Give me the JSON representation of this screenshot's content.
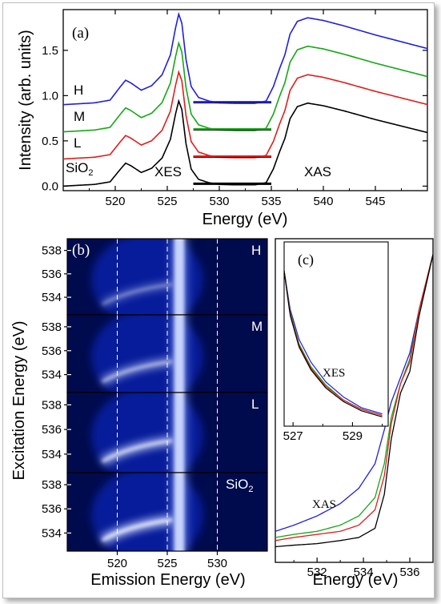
{
  "chart_data": [
    {
      "panel": "(a)",
      "type": "line",
      "xlabel": "Energy (eV)",
      "ylabel": "Intensity (arb. units)",
      "xlim": [
        515,
        550
      ],
      "ylim": [
        -0.05,
        1.95
      ],
      "xticks": [
        "520",
        "525",
        "530",
        "535",
        "540",
        "545"
      ],
      "yticks": [
        "0.0",
        "0.5",
        "1.0",
        "1.5"
      ],
      "annotations": {
        "xes": "XES",
        "xas": "XAS"
      },
      "series": [
        {
          "label": "H",
          "color": "#1f1fdd",
          "offset": 0.9,
          "baseline_marker": [
            527.5,
            535
          ]
        },
        {
          "label": "M",
          "color": "#14a814",
          "offset": 0.6,
          "baseline_marker": [
            527.5,
            535
          ]
        },
        {
          "label": "L",
          "color": "#e21c1c",
          "offset": 0.3,
          "baseline_marker": [
            527.5,
            535
          ]
        },
        {
          "label": "SiO",
          "label_sub": "2",
          "color": "#000000",
          "offset": 0.0,
          "baseline_marker": [
            527.5,
            535
          ]
        }
      ],
      "xes_shape": [
        [
          515,
          0.0
        ],
        [
          518,
          0.02
        ],
        [
          519.5,
          0.05
        ],
        [
          520.5,
          0.2
        ],
        [
          521,
          0.27
        ],
        [
          521.5,
          0.24
        ],
        [
          522.5,
          0.16
        ],
        [
          523.5,
          0.21
        ],
        [
          524.5,
          0.33
        ],
        [
          525.3,
          0.55
        ],
        [
          525.8,
          0.85
        ],
        [
          526.1,
          1.0
        ],
        [
          526.4,
          0.9
        ],
        [
          526.8,
          0.5
        ],
        [
          527.3,
          0.2
        ],
        [
          528,
          0.08
        ],
        [
          529,
          0.04
        ],
        [
          530,
          0.02
        ],
        [
          531.5,
          0.015
        ],
        [
          533,
          0.015
        ]
      ],
      "xas_shape": [
        [
          527,
          0.0
        ],
        [
          533,
          0.005
        ],
        [
          534.5,
          0.04
        ],
        [
          535.2,
          0.2
        ],
        [
          535.8,
          0.4
        ],
        [
          536.3,
          0.55
        ],
        [
          536.8,
          0.78
        ],
        [
          537.5,
          0.92
        ],
        [
          538.5,
          0.96
        ],
        [
          540,
          0.93
        ],
        [
          542,
          0.87
        ],
        [
          545,
          0.77
        ],
        [
          548,
          0.68
        ],
        [
          550,
          0.62
        ]
      ]
    },
    {
      "panel": "(b)",
      "type": "heatmap",
      "xlabel": "Emission Energy (eV)",
      "ylabel": "Excitation Energy (eV)",
      "xlim": [
        515,
        535
      ],
      "ylim": [
        532.5,
        539
      ],
      "xticks": [
        "520",
        "525",
        "530"
      ],
      "yticks": [
        "534",
        "536",
        "538"
      ],
      "dashed_lines_x": [
        520,
        525,
        530
      ],
      "maps": [
        {
          "label": "H",
          "strength": 0.35
        },
        {
          "label": "M",
          "strength": 0.65
        },
        {
          "label": "L",
          "strength": 0.85
        },
        {
          "label": "SiO",
          "label_sub": "2",
          "strength": 1.0
        }
      ]
    },
    {
      "panel": "(c)",
      "type": "line",
      "xlabel": "Energy (eV)",
      "xlim": [
        530.2,
        537
      ],
      "xticks": [
        "532",
        "534",
        "536"
      ],
      "annotations": {
        "xas": "XAS"
      },
      "xas_series": [
        {
          "color": "#1f1fdd",
          "points": [
            [
              530.2,
              0.08
            ],
            [
              531,
              0.1
            ],
            [
              532,
              0.13
            ],
            [
              533,
              0.17
            ],
            [
              533.8,
              0.22
            ],
            [
              534.5,
              0.3
            ],
            [
              534.9,
              0.41
            ],
            [
              535.2,
              0.5
            ],
            [
              535.6,
              0.58
            ],
            [
              536,
              0.66
            ],
            [
              536.4,
              0.8
            ],
            [
              537,
              0.98
            ]
          ]
        },
        {
          "color": "#14a814",
          "points": [
            [
              530.2,
              0.06
            ],
            [
              531,
              0.07
            ],
            [
              532,
              0.08
            ],
            [
              533,
              0.1
            ],
            [
              533.8,
              0.13
            ],
            [
              534.5,
              0.19
            ],
            [
              534.9,
              0.3
            ],
            [
              535.2,
              0.45
            ],
            [
              535.6,
              0.56
            ],
            [
              536,
              0.64
            ],
            [
              536.4,
              0.8
            ],
            [
              537,
              0.98
            ]
          ]
        },
        {
          "color": "#e21c1c",
          "points": [
            [
              530.2,
              0.05
            ],
            [
              531,
              0.06
            ],
            [
              532,
              0.07
            ],
            [
              533,
              0.08
            ],
            [
              533.8,
              0.1
            ],
            [
              534.5,
              0.15
            ],
            [
              534.9,
              0.26
            ],
            [
              535.2,
              0.43
            ],
            [
              535.6,
              0.56
            ],
            [
              536,
              0.63
            ],
            [
              536.4,
              0.8
            ],
            [
              537,
              0.98
            ]
          ]
        },
        {
          "color": "#000000",
          "points": [
            [
              530.2,
              0.03
            ],
            [
              531,
              0.035
            ],
            [
              532,
              0.04
            ],
            [
              533,
              0.05
            ],
            [
              533.8,
              0.06
            ],
            [
              534.5,
              0.09
            ],
            [
              534.9,
              0.2
            ],
            [
              535.2,
              0.38
            ],
            [
              535.6,
              0.53
            ],
            [
              536,
              0.6
            ],
            [
              536.4,
              0.78
            ],
            [
              537,
              0.98
            ]
          ]
        }
      ],
      "inset": {
        "xlabel": "",
        "xlim": [
          526.7,
          530.2
        ],
        "xticks": [
          "527",
          "529"
        ],
        "annotations": {
          "xes": "XES"
        },
        "series": [
          {
            "color": "#1f1fdd",
            "points": [
              [
                526.7,
                1.0
              ],
              [
                526.9,
                0.75
              ],
              [
                527.2,
                0.55
              ],
              [
                527.6,
                0.4
              ],
              [
                528.1,
                0.27
              ],
              [
                528.7,
                0.17
              ],
              [
                529.3,
                0.1
              ],
              [
                530.0,
                0.06
              ]
            ]
          },
          {
            "color": "#14a814",
            "points": [
              [
                526.7,
                1.0
              ],
              [
                526.9,
                0.73
              ],
              [
                527.2,
                0.52
              ],
              [
                527.6,
                0.37
              ],
              [
                528.1,
                0.25
              ],
              [
                528.7,
                0.15
              ],
              [
                529.3,
                0.09
              ],
              [
                530.0,
                0.05
              ]
            ]
          },
          {
            "color": "#e21c1c",
            "points": [
              [
                526.7,
                1.0
              ],
              [
                526.9,
                0.72
              ],
              [
                527.2,
                0.51
              ],
              [
                527.6,
                0.36
              ],
              [
                528.1,
                0.24
              ],
              [
                528.7,
                0.15
              ],
              [
                529.3,
                0.09
              ],
              [
                530.0,
                0.05
              ]
            ]
          },
          {
            "color": "#000000",
            "points": [
              [
                526.7,
                1.0
              ],
              [
                526.9,
                0.71
              ],
              [
                527.2,
                0.5
              ],
              [
                527.6,
                0.35
              ],
              [
                528.1,
                0.23
              ],
              [
                528.7,
                0.14
              ],
              [
                529.3,
                0.08
              ],
              [
                530.0,
                0.04
              ]
            ]
          }
        ]
      }
    }
  ]
}
